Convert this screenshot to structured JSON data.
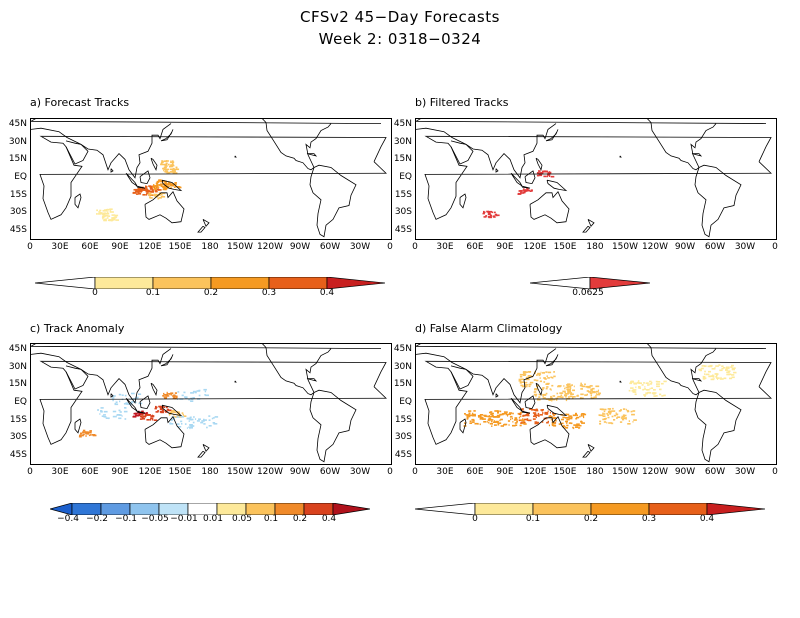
{
  "title": {
    "line1": "CFSv2 45−Day Forecasts",
    "line2": "Week 2: 0318−0324"
  },
  "lat_labels": [
    "45N",
    "30N",
    "15N",
    "EQ",
    "15S",
    "30S",
    "45S"
  ],
  "lon_labels": [
    "0",
    "30E",
    "60E",
    "90E",
    "120E",
    "150E",
    "180",
    "150W",
    "120W",
    "90W",
    "60W",
    "30W",
    "0"
  ],
  "panels": [
    {
      "id": "a",
      "title": "a) Forecast Tracks",
      "colorbar": {
        "colors": [
          "#ffffff",
          "#fde99a",
          "#fbc35c",
          "#f59a22",
          "#e7601a",
          "#c81f1f"
        ],
        "labels": [
          "0",
          "0.1",
          "0.2",
          "0.3",
          "0.4"
        ]
      }
    },
    {
      "id": "b",
      "title": "b) Filtered Tracks",
      "colorbar": {
        "colors": [
          "#ffffff",
          "#e23b3b"
        ],
        "labels": [
          "0.0625"
        ]
      }
    },
    {
      "id": "c",
      "title": "c) Track Anomaly",
      "colorbar": {
        "colors": [
          "#1c5fcc",
          "#5f9be2",
          "#8fc4ee",
          "#bfe3f7",
          "#ffffff",
          "#ffffff",
          "#fde99a",
          "#fbc35c",
          "#f08a2a",
          "#d9431e",
          "#b0121c"
        ],
        "labels": [
          "−0.4",
          "−0.2",
          "−0.1",
          "−0.05",
          "−0.01",
          "0.01",
          "0.05",
          "0.1",
          "0.2",
          "0.4"
        ]
      }
    },
    {
      "id": "d",
      "title": "d) False Alarm Climatology",
      "colorbar": {
        "colors": [
          "#ffffff",
          "#fde99a",
          "#fbc35c",
          "#f59a22",
          "#e7601a",
          "#c81f1f"
        ],
        "labels": [
          "0",
          "0.1",
          "0.2",
          "0.3",
          "0.4"
        ]
      }
    }
  ],
  "features": {
    "a": [
      {
        "lon": 108,
        "lat": -9,
        "value": 0.3
      },
      {
        "lon": 112,
        "lat": -11,
        "value": 0.3
      },
      {
        "lon": 120,
        "lat": -8,
        "value": 0.3
      },
      {
        "lon": 128,
        "lat": -6,
        "value": 0.2
      },
      {
        "lon": 132,
        "lat": -3,
        "value": 0.2
      },
      {
        "lon": 140,
        "lat": -5,
        "value": 0.2
      },
      {
        "lon": 138,
        "lat": 8,
        "value": 0.1
      },
      {
        "lon": 135,
        "lat": 14,
        "value": 0.1
      },
      {
        "lon": 124,
        "lat": -14,
        "value": 0.15
      },
      {
        "lon": 72,
        "lat": -28,
        "value": 0.05
      },
      {
        "lon": 78,
        "lat": -33,
        "value": 0.05
      }
    ],
    "b": [
      {
        "lon": 108,
        "lat": -10,
        "value": 0.0625
      },
      {
        "lon": 128,
        "lat": 5,
        "value": 0.0625
      },
      {
        "lon": 73,
        "lat": -30,
        "value": 0.0625
      }
    ],
    "c": [
      {
        "lon": 108,
        "lat": -8,
        "value": 0.4
      },
      {
        "lon": 116,
        "lat": -11,
        "value": 0.2
      },
      {
        "lon": 130,
        "lat": -4,
        "value": 0.2
      },
      {
        "lon": 138,
        "lat": 8,
        "value": 0.1
      },
      {
        "lon": 145,
        "lat": -8,
        "value": 0.05
      },
      {
        "lon": 55,
        "lat": -25,
        "value": 0.1
      },
      {
        "lon": 80,
        "lat": -8,
        "value": -0.05
      },
      {
        "lon": 150,
        "lat": -15,
        "value": -0.05
      },
      {
        "lon": 170,
        "lat": -15,
        "value": -0.05
      },
      {
        "lon": 160,
        "lat": 8,
        "value": -0.05
      },
      {
        "lon": 95,
        "lat": 5,
        "value": -0.05
      }
    ],
    "d": [
      {
        "lon": 120,
        "lat": -10,
        "value": 0.3
      },
      {
        "lon": 90,
        "lat": -12,
        "value": 0.25
      },
      {
        "lon": 65,
        "lat": -12,
        "value": 0.2
      },
      {
        "lon": 150,
        "lat": -14,
        "value": 0.2
      },
      {
        "lon": 135,
        "lat": 10,
        "value": 0.15
      },
      {
        "lon": 165,
        "lat": 12,
        "value": 0.1
      },
      {
        "lon": 200,
        "lat": -10,
        "value": 0.1
      },
      {
        "lon": 230,
        "lat": 14,
        "value": 0.05
      },
      {
        "lon": 300,
        "lat": 28,
        "value": 0.05
      },
      {
        "lon": 120,
        "lat": 22,
        "value": 0.1
      }
    ]
  }
}
